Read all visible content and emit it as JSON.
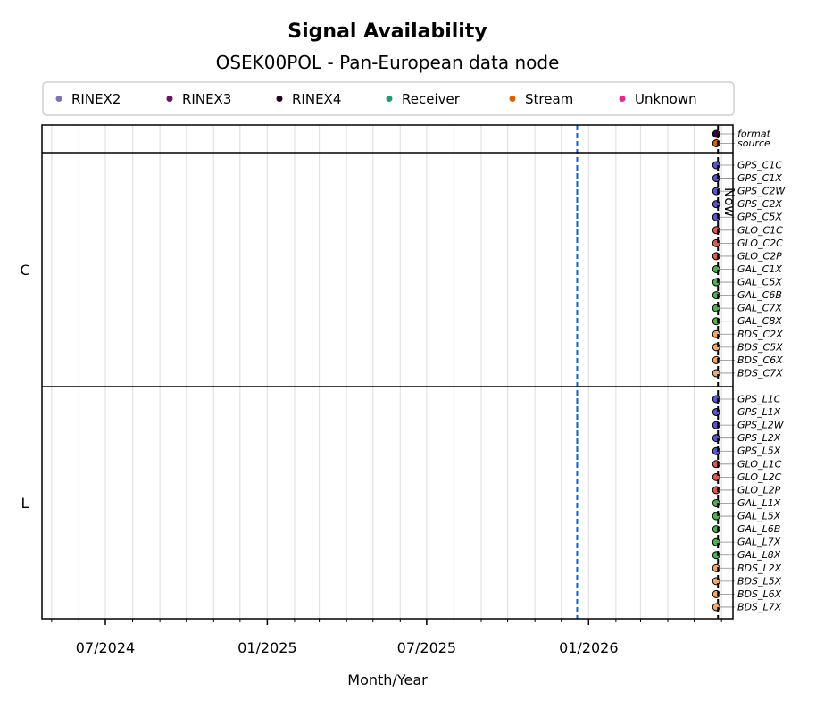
{
  "chart_data": {
    "type": "scatter",
    "title": "Signal Availability",
    "subtitle": "OSEK00POL - Pan-European data node",
    "xlabel": "Month/Year",
    "x_tick_labels": [
      {
        "date": "2024-07-01",
        "label": "07/2024"
      },
      {
        "date": "2025-01-01",
        "label": "01/2025"
      },
      {
        "date": "2025-07-01",
        "label": "07/2025"
      },
      {
        "date": "2026-01-01",
        "label": "01/2026"
      }
    ],
    "xlim": [
      "2024-04-20",
      "2026-06-14"
    ],
    "grid": "vertical monthly",
    "legend_placement": "top",
    "legend": [
      {
        "name": "RINEX2",
        "color": "#7f72b8"
      },
      {
        "name": "RINEX3",
        "color": "#6a0f63"
      },
      {
        "name": "RINEX4",
        "color": "#22001f"
      },
      {
        "name": "Receiver",
        "color": "#1b9e77"
      },
      {
        "name": "Stream",
        "color": "#d95f02"
      },
      {
        "name": "Unknown",
        "color": "#e7298a"
      }
    ],
    "reference_lines": [
      {
        "date": "2025-12-19",
        "color": "#1060c8",
        "style": "dashed",
        "label": ""
      },
      {
        "date": "2026-05-28",
        "color": "#000000",
        "style": "dashed",
        "label": "Now"
      }
    ],
    "groups": [
      {
        "name": "",
        "rows": [
          {
            "label": "format",
            "date": "2026-05-26",
            "color": "#3d0838"
          },
          {
            "label": "source",
            "date": "2026-05-26",
            "color": "#d95f02"
          }
        ]
      },
      {
        "name": "C",
        "rows": [
          {
            "label": "GPS_C1C",
            "date": "2026-05-26",
            "color": "#5a55c8"
          },
          {
            "label": "GPS_C1X",
            "date": "2026-05-26",
            "color": "#5a55c8"
          },
          {
            "label": "GPS_C2W",
            "date": "2026-05-26",
            "color": "#5a55c8"
          },
          {
            "label": "GPS_C2X",
            "date": "2026-05-26",
            "color": "#5a55c8"
          },
          {
            "label": "GPS_C5X",
            "date": "2026-05-26",
            "color": "#5a55c8"
          },
          {
            "label": "GLO_C1C",
            "date": "2026-05-26",
            "color": "#dc5a55"
          },
          {
            "label": "GLO_C2C",
            "date": "2026-05-26",
            "color": "#dc5a55"
          },
          {
            "label": "GLO_C2P",
            "date": "2026-05-26",
            "color": "#dc5a55"
          },
          {
            "label": "GAL_C1X",
            "date": "2026-05-26",
            "color": "#52b052"
          },
          {
            "label": "GAL_C5X",
            "date": "2026-05-26",
            "color": "#52b052"
          },
          {
            "label": "GAL_C6B",
            "date": "2026-05-26",
            "color": "#52b052"
          },
          {
            "label": "GAL_C7X",
            "date": "2026-05-26",
            "color": "#52b052"
          },
          {
            "label": "GAL_C8X",
            "date": "2026-05-26",
            "color": "#52b052"
          },
          {
            "label": "BDS_C2X",
            "date": "2026-05-26",
            "color": "#f5a868"
          },
          {
            "label": "BDS_C5X",
            "date": "2026-05-26",
            "color": "#f5a868"
          },
          {
            "label": "BDS_C6X",
            "date": "2026-05-26",
            "color": "#f5a868"
          },
          {
            "label": "BDS_C7X",
            "date": "2026-05-26",
            "color": "#f5a868"
          }
        ]
      },
      {
        "name": "L",
        "rows": [
          {
            "label": "GPS_L1C",
            "date": "2026-05-26",
            "color": "#5a55c8"
          },
          {
            "label": "GPS_L1X",
            "date": "2026-05-26",
            "color": "#5a55c8"
          },
          {
            "label": "GPS_L2W",
            "date": "2026-05-26",
            "color": "#5a55c8"
          },
          {
            "label": "GPS_L2X",
            "date": "2026-05-26",
            "color": "#5a55c8"
          },
          {
            "label": "GPS_L5X",
            "date": "2026-05-26",
            "color": "#5a55c8"
          },
          {
            "label": "GLO_L1C",
            "date": "2026-05-26",
            "color": "#dc5a55"
          },
          {
            "label": "GLO_L2C",
            "date": "2026-05-26",
            "color": "#dc5a55"
          },
          {
            "label": "GLO_L2P",
            "date": "2026-05-26",
            "color": "#dc5a55"
          },
          {
            "label": "GAL_L1X",
            "date": "2026-05-26",
            "color": "#52b052"
          },
          {
            "label": "GAL_L5X",
            "date": "2026-05-26",
            "color": "#52b052"
          },
          {
            "label": "GAL_L6B",
            "date": "2026-05-26",
            "color": "#52b052"
          },
          {
            "label": "GAL_L7X",
            "date": "2026-05-26",
            "color": "#52b052"
          },
          {
            "label": "GAL_L8X",
            "date": "2026-05-26",
            "color": "#52b052"
          },
          {
            "label": "BDS_L2X",
            "date": "2026-05-26",
            "color": "#f5a868"
          },
          {
            "label": "BDS_L5X",
            "date": "2026-05-26",
            "color": "#f5a868"
          },
          {
            "label": "BDS_L6X",
            "date": "2026-05-26",
            "color": "#f5a868"
          },
          {
            "label": "BDS_L7X",
            "date": "2026-05-26",
            "color": "#f5a868"
          }
        ]
      }
    ]
  }
}
